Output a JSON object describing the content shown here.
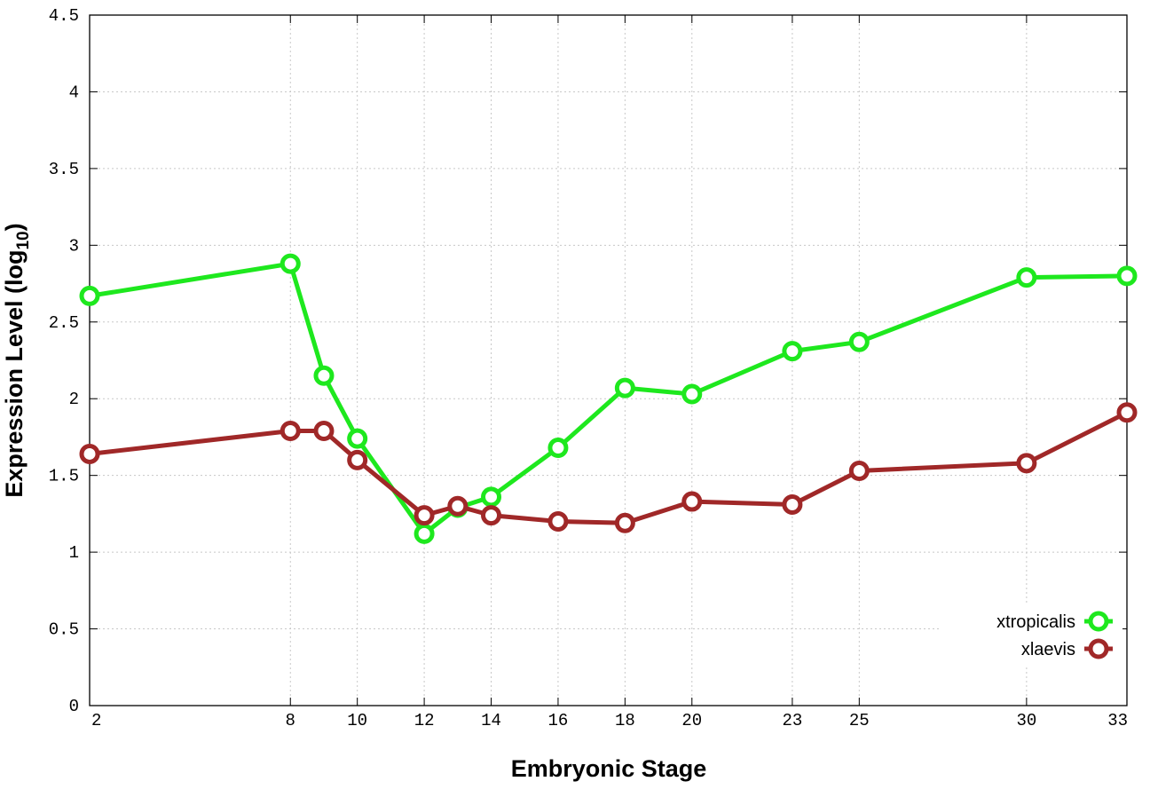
{
  "chart_data": {
    "type": "line",
    "xlabel": "Embryonic Stage",
    "ylabel": "Expression Level (log",
    "ylabel_subscript": "10",
    "ylabel_close": ")",
    "xlim": [
      2,
      33
    ],
    "ylim": [
      0,
      4.5
    ],
    "x_ticks": [
      2,
      8,
      10,
      12,
      14,
      16,
      18,
      20,
      23,
      25,
      30,
      33
    ],
    "y_ticks": [
      0,
      0.5,
      1,
      1.5,
      2,
      2.5,
      3,
      3.5,
      4,
      4.5
    ],
    "y_tick_labels": [
      "0",
      "0.5",
      "1",
      "1.5",
      "2",
      "2.5",
      "3",
      "3.5",
      "4",
      "4.5"
    ],
    "grid": true,
    "legend_position": "bottom-right",
    "series": [
      {
        "name": "xtropicalis",
        "color": "#1ee81e",
        "x": [
          2,
          8,
          9,
          10,
          12,
          13,
          14,
          16,
          18,
          20,
          23,
          25,
          30,
          33
        ],
        "y": [
          2.67,
          2.88,
          2.15,
          1.74,
          1.12,
          1.29,
          1.36,
          1.68,
          2.07,
          2.03,
          2.31,
          2.37,
          2.79,
          2.8
        ]
      },
      {
        "name": "xlaevis",
        "color": "#a02828",
        "x": [
          2,
          8,
          9,
          10,
          12,
          13,
          14,
          16,
          18,
          20,
          23,
          25,
          30,
          33
        ],
        "y": [
          1.64,
          1.79,
          1.79,
          1.6,
          1.24,
          1.3,
          1.24,
          1.2,
          1.19,
          1.33,
          1.31,
          1.53,
          1.58,
          1.91
        ]
      }
    ]
  }
}
